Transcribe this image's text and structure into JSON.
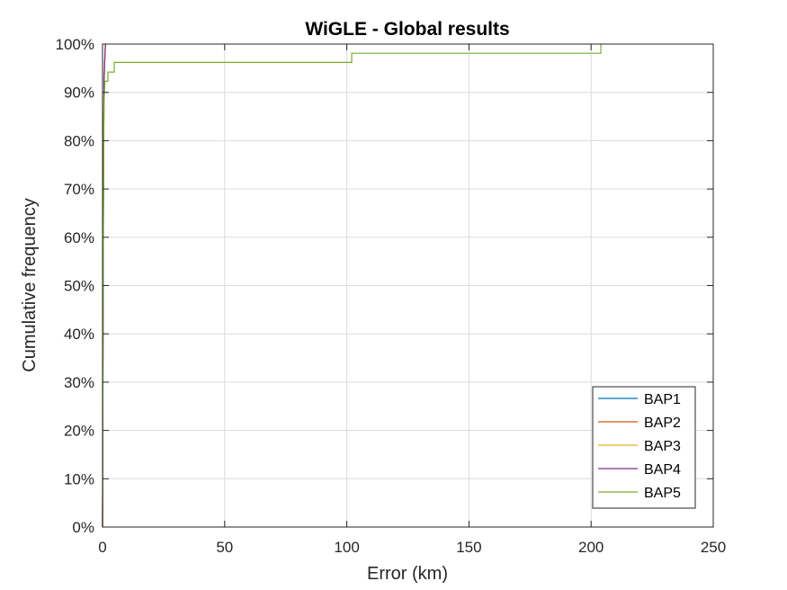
{
  "chart_data": {
    "type": "line",
    "title": "WiGLE - Global results",
    "xlabel": "Error (km)",
    "ylabel": "Cumulative frequency",
    "xlim": [
      0,
      250
    ],
    "ylim": [
      0,
      1
    ],
    "xticks": [
      0,
      50,
      100,
      150,
      200,
      250
    ],
    "xtick_labels": [
      "0",
      "50",
      "100",
      "150",
      "200",
      "250"
    ],
    "yticks": [
      0,
      0.1,
      0.2,
      0.3,
      0.4,
      0.5,
      0.6,
      0.7,
      0.8,
      0.9,
      1.0
    ],
    "ytick_labels": [
      "0%",
      "10%",
      "20%",
      "30%",
      "40%",
      "50%",
      "60%",
      "70%",
      "80%",
      "90%",
      "100%"
    ],
    "grid": true,
    "legend_position": "bottom-right",
    "series": [
      {
        "name": "BAP1",
        "color": "#0072bd",
        "x": [
          0,
          0.3,
          0.6,
          1.0,
          1.2
        ],
        "y": [
          0,
          0.6,
          0.92,
          0.98,
          1.0
        ]
      },
      {
        "name": "BAP2",
        "color": "#d95319",
        "x": [
          0,
          0.3,
          0.6,
          1.0,
          1.2
        ],
        "y": [
          0,
          0.6,
          0.92,
          0.98,
          1.0
        ]
      },
      {
        "name": "BAP3",
        "color": "#edb120",
        "x": [
          0,
          0.3,
          0.6,
          1.0,
          1.2
        ],
        "y": [
          0,
          0.6,
          0.92,
          0.98,
          1.0
        ]
      },
      {
        "name": "BAP4",
        "color": "#7e2f8e",
        "x": [
          0,
          0.3,
          0.6,
          1.0,
          1.2
        ],
        "y": [
          0,
          0.6,
          0.92,
          0.98,
          1.0
        ]
      },
      {
        "name": "BAP5",
        "color": "#77ac30",
        "x": [
          0,
          0.3,
          0.6,
          1.0,
          2.2,
          2.2,
          4.8,
          4.8,
          102,
          102,
          204,
          204
        ],
        "y": [
          0,
          0.55,
          0.88,
          0.923,
          0.923,
          0.942,
          0.942,
          0.962,
          0.962,
          0.981,
          0.981,
          1.0
        ]
      }
    ]
  }
}
